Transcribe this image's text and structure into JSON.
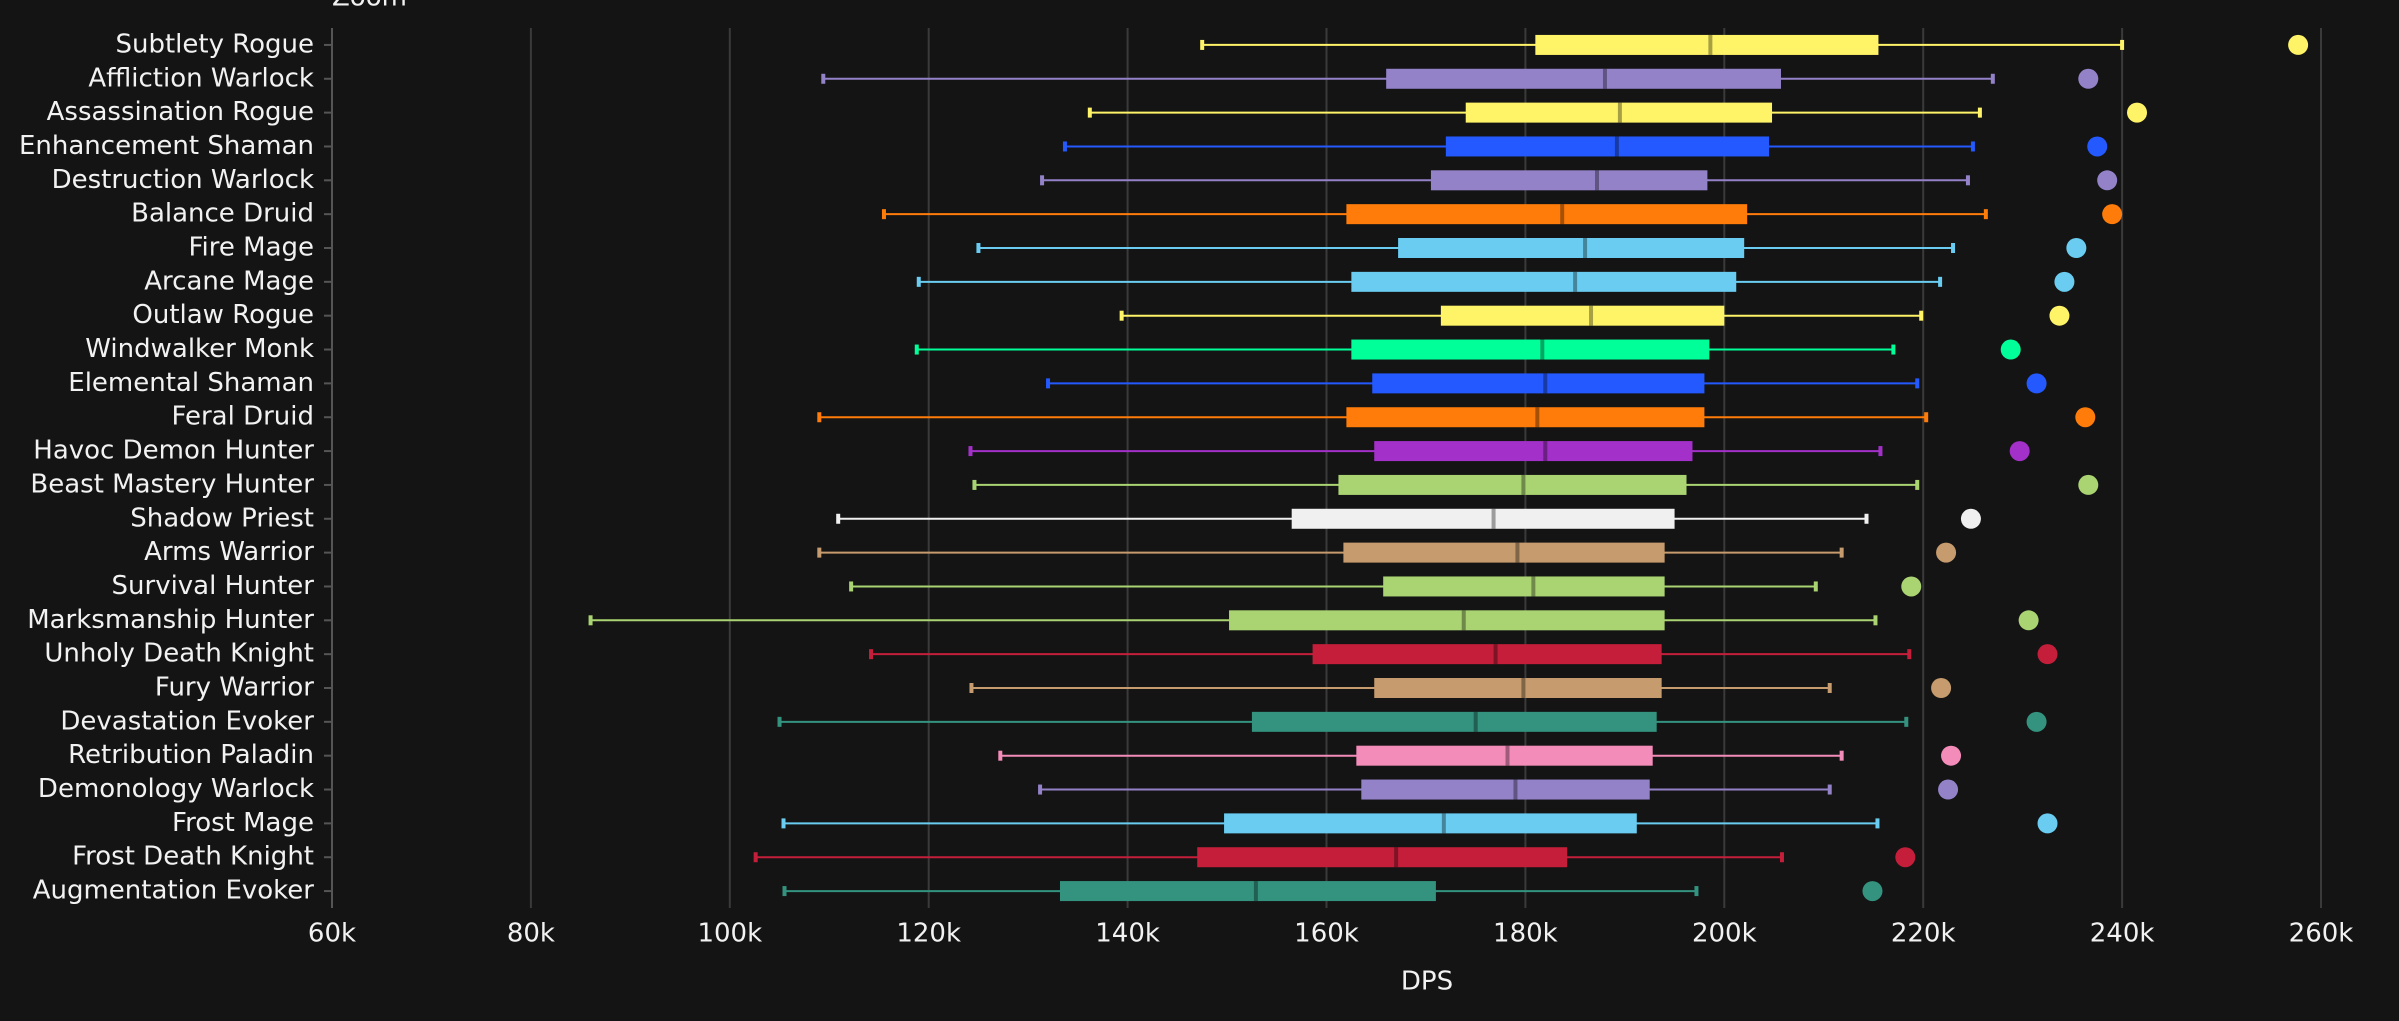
{
  "chart_data": {
    "type": "box",
    "zoom_label": "Zoom",
    "xlabel": "DPS",
    "categories": [
      "Subtlety Rogue",
      "Affliction Warlock",
      "Assassination Rogue",
      "Enhancement Shaman",
      "Destruction Warlock",
      "Balance Druid",
      "Fire Mage",
      "Arcane Mage",
      "Outlaw Rogue",
      "Windwalker Monk",
      "Elemental Shaman",
      "Feral Druid",
      "Havoc Demon Hunter",
      "Beast Mastery Hunter",
      "Shadow Priest",
      "Arms Warrior",
      "Survival Hunter",
      "Marksmanship Hunter",
      "Unholy Death Knight",
      "Fury Warrior",
      "Devastation Evoker",
      "Retribution Paladin",
      "Demonology Warlock",
      "Frost Mage",
      "Frost Death Knight",
      "Augmentation Evoker"
    ],
    "colors": [
      "#fff468",
      "#9482c9",
      "#fff468",
      "#2459ff",
      "#9482c9",
      "#ff7c0a",
      "#69ccf0",
      "#69ccf0",
      "#fff468",
      "#00ff98",
      "#2459ff",
      "#ff7c0a",
      "#a330c9",
      "#aad372",
      "#f0f0f0",
      "#c69b6d",
      "#aad372",
      "#aad372",
      "#c41e3a",
      "#c69b6d",
      "#33937f",
      "#f48cba",
      "#9482c9",
      "#69ccf0",
      "#c41e3a",
      "#33937f"
    ],
    "min": [
      147500,
      109400,
      136200,
      133700,
      131400,
      115500,
      125000,
      119000,
      139400,
      118800,
      132000,
      109000,
      124200,
      124600,
      110900,
      109000,
      112200,
      86000,
      114200,
      124300,
      105000,
      127200,
      131200,
      105400,
      102600,
      105500
    ],
    "q1": [
      181000,
      166000,
      174000,
      172000,
      170500,
      162000,
      167200,
      162500,
      171500,
      162500,
      164600,
      162000,
      164800,
      161200,
      156500,
      161700,
      165700,
      150200,
      158600,
      164800,
      152500,
      163000,
      163500,
      149700,
      147000,
      133200
    ],
    "median": [
      198600,
      188000,
      189500,
      189200,
      187200,
      183700,
      186000,
      185000,
      186600,
      181700,
      182000,
      181200,
      182000,
      179800,
      176800,
      179200,
      180800,
      173800,
      177000,
      179800,
      175000,
      178200,
      179000,
      171800,
      167000,
      152900
    ],
    "q3": [
      215500,
      205700,
      204800,
      204500,
      198300,
      202300,
      202000,
      201200,
      200000,
      198500,
      198000,
      198000,
      196800,
      196200,
      195000,
      194000,
      194000,
      194000,
      193700,
      193700,
      193200,
      192800,
      192500,
      191200,
      184200,
      171000
    ],
    "max": [
      240000,
      227000,
      225700,
      225000,
      224500,
      226300,
      223000,
      221700,
      219800,
      217000,
      219400,
      220300,
      215700,
      219400,
      214300,
      211800,
      209200,
      215200,
      218600,
      210600,
      218300,
      211800,
      210600,
      215400,
      205800,
      197200
    ],
    "points": [
      257700,
      236600,
      241500,
      237500,
      238500,
      239000,
      235400,
      234200,
      233700,
      228800,
      231400,
      236300,
      229700,
      236600,
      224800,
      222300,
      218800,
      230600,
      232500,
      221800,
      231400,
      222800,
      222500,
      232500,
      218200,
      214900
    ],
    "xlim": [
      60000,
      260000
    ],
    "xticks": [
      {
        "value": 60000,
        "label": "60k"
      },
      {
        "value": 80000,
        "label": "80k"
      },
      {
        "value": 100000,
        "label": "100k"
      },
      {
        "value": 120000,
        "label": "120k"
      },
      {
        "value": 140000,
        "label": "140k"
      },
      {
        "value": 160000,
        "label": "160k"
      },
      {
        "value": 180000,
        "label": "180k"
      },
      {
        "value": 200000,
        "label": "200k"
      },
      {
        "value": 220000,
        "label": "220k"
      },
      {
        "value": 240000,
        "label": "240k"
      },
      {
        "value": 260000,
        "label": "260k"
      }
    ],
    "grid": true
  }
}
